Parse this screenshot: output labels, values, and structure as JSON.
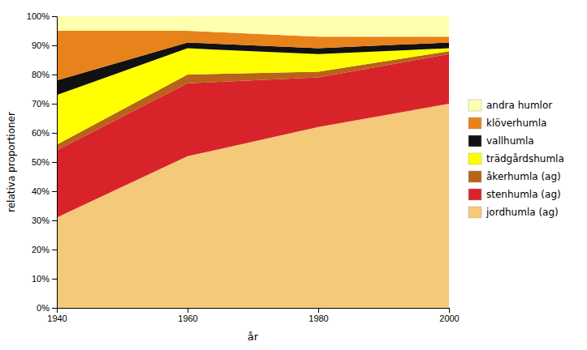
{
  "chart_data": {
    "type": "area",
    "stacked": true,
    "x": [
      1940,
      1960,
      1980,
      2000
    ],
    "series": [
      {
        "name": "jordhumla (ag)",
        "color": "#F5C97A",
        "values": [
          0.31,
          0.52,
          0.62,
          0.7
        ]
      },
      {
        "name": "stenhumla (ag)",
        "color": "#D9232A",
        "values": [
          0.23,
          0.25,
          0.17,
          0.17
        ]
      },
      {
        "name": "åkerhumla (ag)",
        "color": "#B8621A",
        "values": [
          0.02,
          0.03,
          0.02,
          0.01
        ]
      },
      {
        "name": "trädgårdshumla",
        "color": "#FFFF00",
        "values": [
          0.17,
          0.09,
          0.06,
          0.01
        ]
      },
      {
        "name": "vallhumla",
        "color": "#111111",
        "values": [
          0.05,
          0.02,
          0.02,
          0.02
        ]
      },
      {
        "name": "klöverhumla",
        "color": "#E8821A",
        "values": [
          0.17,
          0.04,
          0.04,
          0.02
        ]
      },
      {
        "name": "andra humlor",
        "color": "#FFFFB0",
        "values": [
          0.05,
          0.05,
          0.07,
          0.07
        ]
      }
    ],
    "xlabel": "år",
    "ylabel": "relativa proportioner",
    "xlim": [
      1940,
      2000
    ],
    "xticks": [
      1940,
      1960,
      1980,
      2000
    ],
    "ylim": [
      0.0,
      1.0
    ],
    "yticks": [
      {
        "value": 0.0,
        "label": "0%"
      },
      {
        "value": 0.1,
        "label": "10%"
      },
      {
        "value": 0.2,
        "label": "20%"
      },
      {
        "value": 0.3,
        "label": "30%"
      },
      {
        "value": 0.4,
        "label": "40%"
      },
      {
        "value": 0.5,
        "label": "50%"
      },
      {
        "value": 0.6,
        "label": "60%"
      },
      {
        "value": 0.7,
        "label": "70%"
      },
      {
        "value": 0.8,
        "label": "80%"
      },
      {
        "value": 0.9,
        "label": "90%"
      },
      {
        "value": 1.0,
        "label": "100%"
      }
    ],
    "grid": false,
    "legend": "right"
  }
}
